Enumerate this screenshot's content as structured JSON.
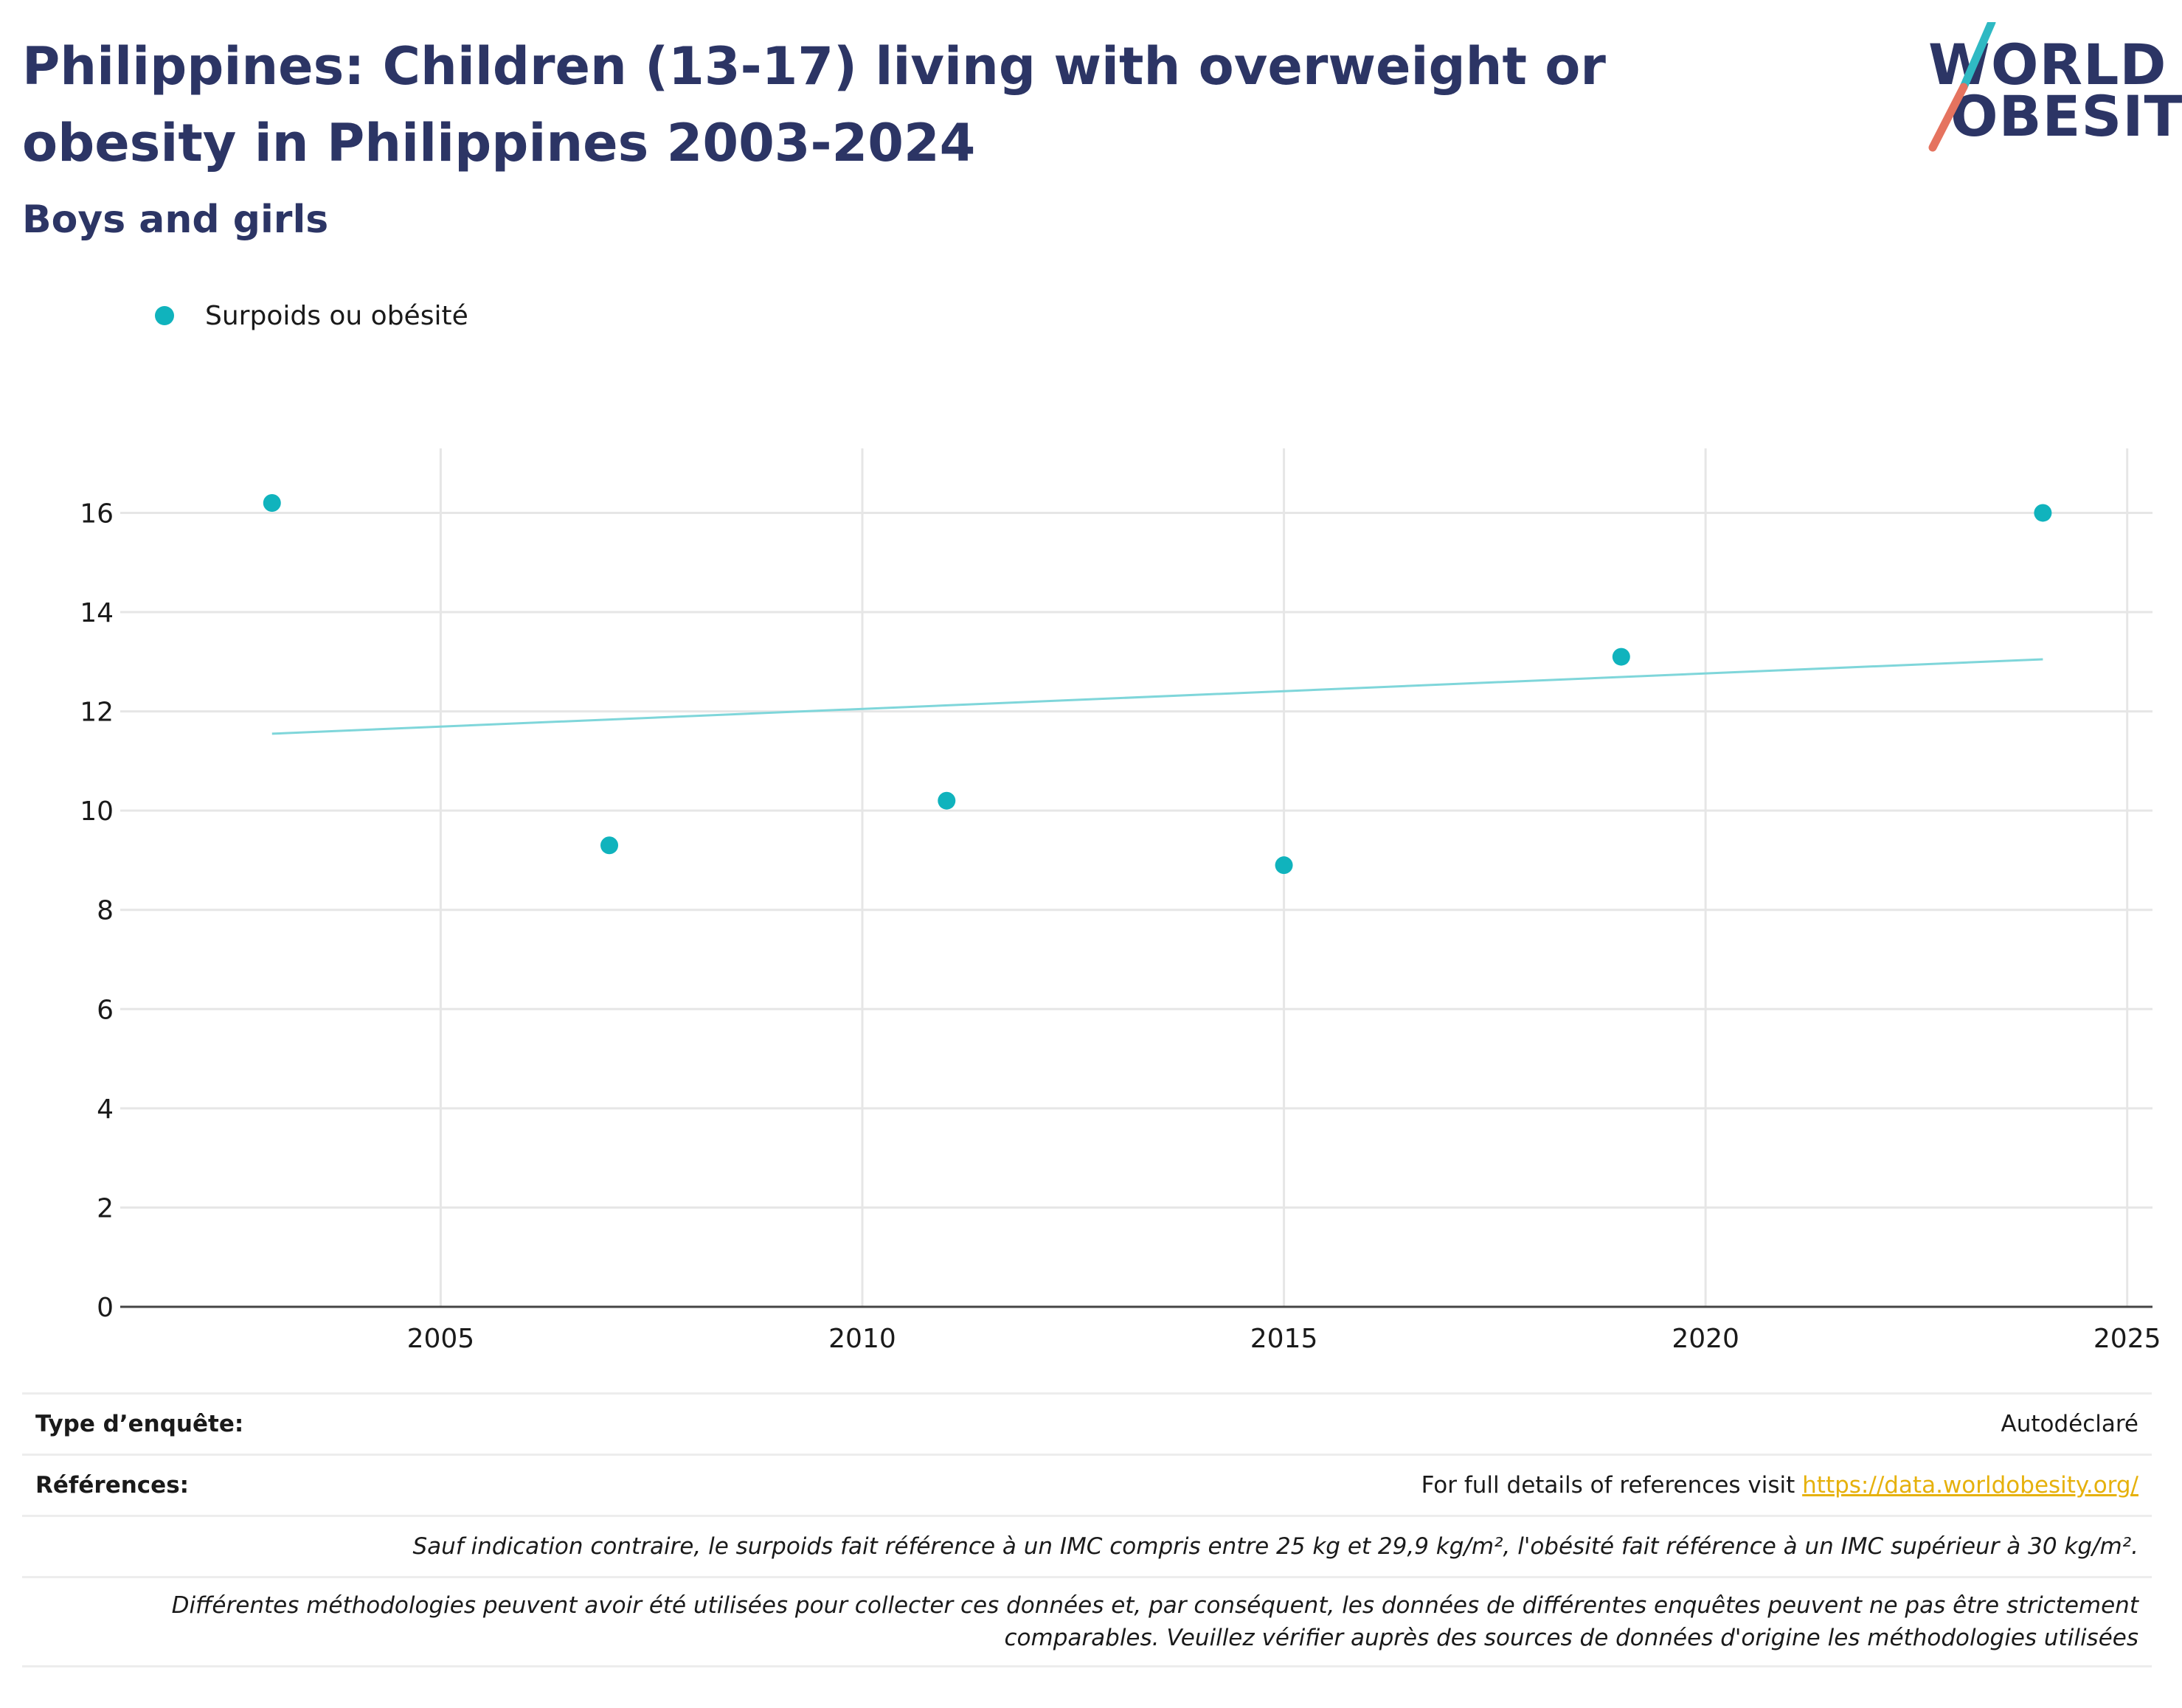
{
  "header": {
    "title": "Philippines: Children (13-17) living with overweight or obesity in Philippines 2003-2024",
    "subtitle": "Boys and girls"
  },
  "logo": {
    "line1": "WORLD",
    "line2": "OBESITY",
    "slash_top_color": "#2fb9c3",
    "slash_bottom_color": "#e5735f"
  },
  "chart_data": {
    "type": "scatter",
    "series": [
      {
        "name": "Surpoids ou obésité",
        "color": "#10b3bd",
        "x": [
          2003,
          2007,
          2011,
          2015,
          2019,
          2024
        ],
        "y": [
          16.2,
          9.3,
          10.2,
          8.9,
          13.1,
          16.0
        ]
      }
    ],
    "trendline": {
      "x": [
        2003,
        2024
      ],
      "y": [
        11.55,
        13.05
      ],
      "color": "#7fd6da"
    },
    "xlim": [
      2001.2,
      2025.3
    ],
    "ylim": [
      0,
      17.3
    ],
    "x_ticks": [
      "2005",
      "2010",
      "2015",
      "2020",
      "2025"
    ],
    "y_ticks": [
      "0",
      "2",
      "4",
      "6",
      "8",
      "10",
      "12",
      "14",
      "16"
    ],
    "grid": true,
    "legend_position": "top-left"
  },
  "footer": {
    "survey_label": "Type d’enquête:",
    "survey_value": "Autodéclaré",
    "references_label": "Références:",
    "references_text": "For full details of references visit ",
    "references_link": "https://data.worldobesity.org/",
    "note1": "Sauf indication contraire, le surpoids fait référence à un IMC compris entre 25 kg et 29,9 kg/m², l'obésité fait référence à un IMC supérieur à 30 kg/m².",
    "note2_line1": "Différentes méthodologies peuvent avoir été utilisées pour collecter ces données et, par conséquent, les données de différentes enquêtes peuvent ne pas être strictement",
    "note2_line2": "comparables. Veuillez vérifier auprès des sources de données d'origine les méthodologies utilisées"
  }
}
